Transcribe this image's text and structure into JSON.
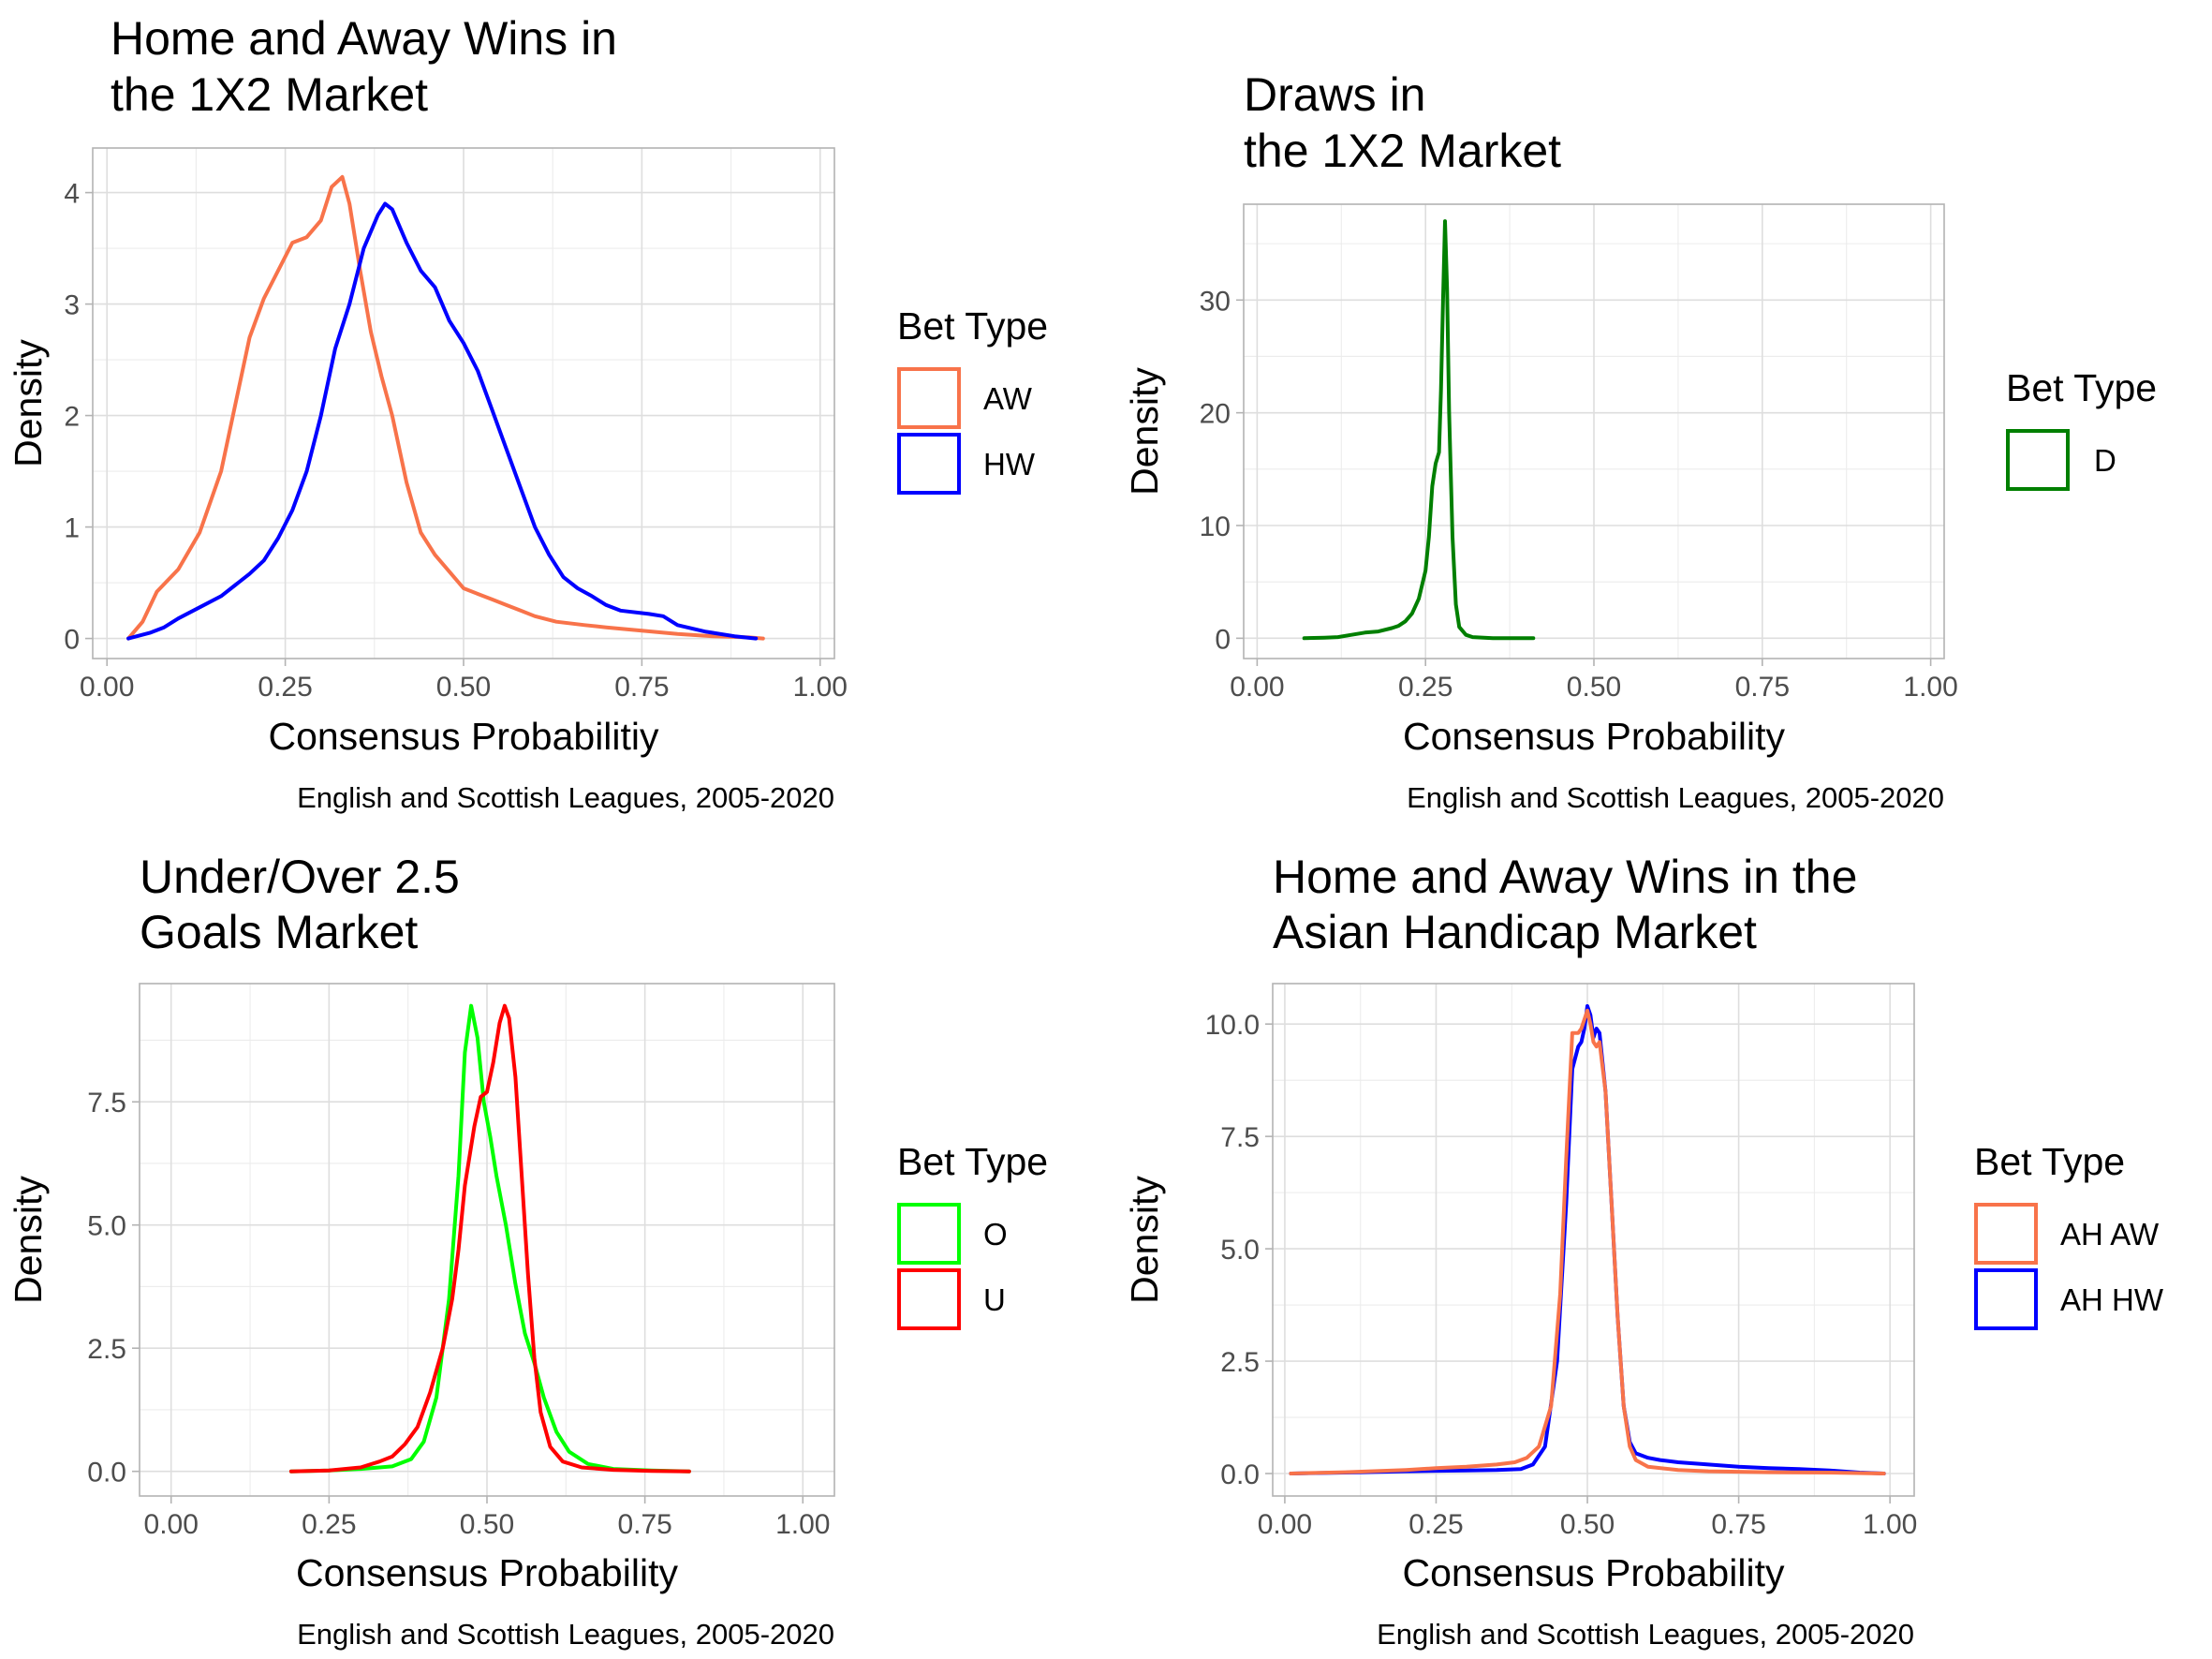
{
  "chart_data": [
    {
      "type": "line",
      "title": [
        "Home and Away Wins in",
        "the 1X2 Market"
      ],
      "xlabel": "Consensus Probabilitiy",
      "ylabel": "Density",
      "caption": "English and Scottish Leagues, 2005-2020",
      "xlim": [
        -0.02,
        1.02
      ],
      "ylim": [
        -0.18,
        4.4
      ],
      "xticks": [
        0,
        0.25,
        0.5,
        0.75,
        1
      ],
      "xtick_labels": [
        "0.00",
        "0.25",
        "0.50",
        "0.75",
        "1.00"
      ],
      "yticks": [
        0,
        1,
        2,
        3,
        4
      ],
      "ytick_labels": [
        "0",
        "1",
        "2",
        "3",
        "4"
      ],
      "grid": true,
      "legend_title": "Bet Type",
      "legend_position": "right",
      "series": [
        {
          "name": "AW",
          "color": "#F8734A",
          "points": [
            [
              0.03,
              0.0
            ],
            [
              0.05,
              0.15
            ],
            [
              0.07,
              0.42
            ],
            [
              0.1,
              0.62
            ],
            [
              0.13,
              0.95
            ],
            [
              0.16,
              1.5
            ],
            [
              0.18,
              2.1
            ],
            [
              0.2,
              2.7
            ],
            [
              0.22,
              3.05
            ],
            [
              0.24,
              3.3
            ],
            [
              0.26,
              3.55
            ],
            [
              0.28,
              3.6
            ],
            [
              0.3,
              3.75
            ],
            [
              0.315,
              4.05
            ],
            [
              0.33,
              4.14
            ],
            [
              0.34,
              3.9
            ],
            [
              0.355,
              3.3
            ],
            [
              0.37,
              2.75
            ],
            [
              0.385,
              2.35
            ],
            [
              0.4,
              2.0
            ],
            [
              0.42,
              1.4
            ],
            [
              0.44,
              0.95
            ],
            [
              0.46,
              0.75
            ],
            [
              0.48,
              0.6
            ],
            [
              0.5,
              0.45
            ],
            [
              0.52,
              0.4
            ],
            [
              0.54,
              0.35
            ],
            [
              0.56,
              0.3
            ],
            [
              0.58,
              0.25
            ],
            [
              0.6,
              0.2
            ],
            [
              0.63,
              0.15
            ],
            [
              0.67,
              0.12
            ],
            [
              0.7,
              0.1
            ],
            [
              0.75,
              0.07
            ],
            [
              0.8,
              0.04
            ],
            [
              0.85,
              0.02
            ],
            [
              0.9,
              0.01
            ],
            [
              0.92,
              0.0
            ]
          ]
        },
        {
          "name": "HW",
          "color": "#0000FF",
          "points": [
            [
              0.03,
              0.0
            ],
            [
              0.06,
              0.05
            ],
            [
              0.08,
              0.1
            ],
            [
              0.1,
              0.18
            ],
            [
              0.13,
              0.28
            ],
            [
              0.16,
              0.38
            ],
            [
              0.18,
              0.48
            ],
            [
              0.2,
              0.58
            ],
            [
              0.22,
              0.7
            ],
            [
              0.24,
              0.9
            ],
            [
              0.26,
              1.15
            ],
            [
              0.28,
              1.5
            ],
            [
              0.3,
              2.0
            ],
            [
              0.32,
              2.6
            ],
            [
              0.34,
              3.0
            ],
            [
              0.36,
              3.5
            ],
            [
              0.38,
              3.8
            ],
            [
              0.39,
              3.9
            ],
            [
              0.4,
              3.85
            ],
            [
              0.42,
              3.55
            ],
            [
              0.44,
              3.3
            ],
            [
              0.46,
              3.15
            ],
            [
              0.48,
              2.85
            ],
            [
              0.5,
              2.65
            ],
            [
              0.52,
              2.4
            ],
            [
              0.54,
              2.05
            ],
            [
              0.56,
              1.7
            ],
            [
              0.58,
              1.35
            ],
            [
              0.6,
              1.0
            ],
            [
              0.62,
              0.75
            ],
            [
              0.64,
              0.55
            ],
            [
              0.66,
              0.45
            ],
            [
              0.68,
              0.38
            ],
            [
              0.7,
              0.3
            ],
            [
              0.72,
              0.25
            ],
            [
              0.76,
              0.22
            ],
            [
              0.78,
              0.2
            ],
            [
              0.8,
              0.12
            ],
            [
              0.84,
              0.06
            ],
            [
              0.88,
              0.02
            ],
            [
              0.91,
              0.0
            ]
          ]
        }
      ]
    },
    {
      "type": "line",
      "title": [
        "Draws in",
        "the 1X2 Market"
      ],
      "xlabel": "Consensus Probability",
      "ylabel": "Density",
      "caption": "English and Scottish Leagues, 2005-2020",
      "xlim": [
        -0.02,
        1.02
      ],
      "ylim": [
        -1.8,
        38.5
      ],
      "xticks": [
        0,
        0.25,
        0.5,
        0.75,
        1
      ],
      "xtick_labels": [
        "0.00",
        "0.25",
        "0.50",
        "0.75",
        "1.00"
      ],
      "yticks": [
        0,
        10,
        20,
        30
      ],
      "ytick_labels": [
        "0",
        "10",
        "20",
        "30"
      ],
      "grid": true,
      "legend_title": "Bet Type",
      "legend_position": "right",
      "series": [
        {
          "name": "D",
          "color": "#007F00",
          "points": [
            [
              0.07,
              0.0
            ],
            [
              0.1,
              0.05
            ],
            [
              0.12,
              0.1
            ],
            [
              0.14,
              0.3
            ],
            [
              0.16,
              0.5
            ],
            [
              0.18,
              0.6
            ],
            [
              0.2,
              0.9
            ],
            [
              0.21,
              1.1
            ],
            [
              0.22,
              1.5
            ],
            [
              0.23,
              2.2
            ],
            [
              0.24,
              3.5
            ],
            [
              0.25,
              6.0
            ],
            [
              0.255,
              9.0
            ],
            [
              0.26,
              13.5
            ],
            [
              0.265,
              15.5
            ],
            [
              0.27,
              16.5
            ],
            [
              0.273,
              22.0
            ],
            [
              0.276,
              30.0
            ],
            [
              0.279,
              37.0
            ],
            [
              0.282,
              31.0
            ],
            [
              0.285,
              20.0
            ],
            [
              0.29,
              9.0
            ],
            [
              0.295,
              3.0
            ],
            [
              0.3,
              1.0
            ],
            [
              0.31,
              0.3
            ],
            [
              0.32,
              0.1
            ],
            [
              0.35,
              0.0
            ],
            [
              0.41,
              0.0
            ]
          ]
        }
      ]
    },
    {
      "type": "line",
      "title": [
        "Under/Over 2.5",
        "Goals Market"
      ],
      "xlabel": "Consensus Probability",
      "ylabel": "Density",
      "caption": "English and Scottish Leagues, 2005-2020",
      "xlim": [
        -0.05,
        1.05
      ],
      "ylim": [
        -0.5,
        9.9
      ],
      "xticks": [
        0,
        0.25,
        0.5,
        0.75,
        1
      ],
      "xtick_labels": [
        "0.00",
        "0.25",
        "0.50",
        "0.75",
        "1.00"
      ],
      "yticks": [
        0,
        2.5,
        5,
        7.5
      ],
      "ytick_labels": [
        "0.0",
        "2.5",
        "5.0",
        "7.5"
      ],
      "grid": true,
      "legend_title": "Bet Type",
      "legend_position": "right",
      "series": [
        {
          "name": "O",
          "color": "#00FF00",
          "points": [
            [
              0.19,
              0.0
            ],
            [
              0.25,
              0.02
            ],
            [
              0.3,
              0.05
            ],
            [
              0.35,
              0.1
            ],
            [
              0.38,
              0.25
            ],
            [
              0.4,
              0.6
            ],
            [
              0.42,
              1.5
            ],
            [
              0.44,
              3.5
            ],
            [
              0.455,
              6.0
            ],
            [
              0.465,
              8.5
            ],
            [
              0.475,
              9.45
            ],
            [
              0.485,
              8.8
            ],
            [
              0.495,
              7.5
            ],
            [
              0.505,
              6.8
            ],
            [
              0.515,
              6.0
            ],
            [
              0.53,
              5.0
            ],
            [
              0.545,
              3.8
            ],
            [
              0.56,
              2.8
            ],
            [
              0.575,
              2.2
            ],
            [
              0.59,
              1.5
            ],
            [
              0.61,
              0.8
            ],
            [
              0.63,
              0.4
            ],
            [
              0.66,
              0.15
            ],
            [
              0.7,
              0.05
            ],
            [
              0.76,
              0.02
            ],
            [
              0.82,
              0.0
            ]
          ]
        },
        {
          "name": "U",
          "color": "#FF0000",
          "points": [
            [
              0.19,
              0.0
            ],
            [
              0.25,
              0.02
            ],
            [
              0.3,
              0.08
            ],
            [
              0.33,
              0.2
            ],
            [
              0.35,
              0.3
            ],
            [
              0.37,
              0.55
            ],
            [
              0.39,
              0.9
            ],
            [
              0.41,
              1.6
            ],
            [
              0.43,
              2.5
            ],
            [
              0.445,
              3.5
            ],
            [
              0.455,
              4.5
            ],
            [
              0.465,
              5.8
            ],
            [
              0.48,
              7.0
            ],
            [
              0.49,
              7.6
            ],
            [
              0.5,
              7.7
            ],
            [
              0.51,
              8.3
            ],
            [
              0.52,
              9.1
            ],
            [
              0.528,
              9.45
            ],
            [
              0.535,
              9.2
            ],
            [
              0.545,
              8.0
            ],
            [
              0.555,
              6.0
            ],
            [
              0.565,
              4.0
            ],
            [
              0.575,
              2.3
            ],
            [
              0.585,
              1.2
            ],
            [
              0.6,
              0.5
            ],
            [
              0.62,
              0.2
            ],
            [
              0.65,
              0.08
            ],
            [
              0.7,
              0.03
            ],
            [
              0.76,
              0.01
            ],
            [
              0.82,
              0.0
            ]
          ]
        }
      ]
    },
    {
      "type": "line",
      "title": [
        "Home and Away Wins in the",
        "Asian Handicap Market"
      ],
      "xlabel": "Consensus Probability",
      "ylabel": "Density",
      "caption": "English and Scottish Leagues, 2005-2020",
      "xlim": [
        -0.02,
        1.04
      ],
      "ylim": [
        -0.5,
        10.9
      ],
      "xticks": [
        0,
        0.25,
        0.5,
        0.75,
        1
      ],
      "xtick_labels": [
        "0.00",
        "0.25",
        "0.50",
        "0.75",
        "1.00"
      ],
      "yticks": [
        0,
        2.5,
        5,
        7.5,
        10
      ],
      "ytick_labels": [
        "0.0",
        "2.5",
        "5.0",
        "7.5",
        "10.0"
      ],
      "grid": true,
      "legend_title": "Bet Type",
      "legend_position": "right",
      "series": [
        {
          "name": "AH HW",
          "color": "#0000FF",
          "points": [
            [
              0.01,
              0.0
            ],
            [
              0.1,
              0.02
            ],
            [
              0.2,
              0.05
            ],
            [
              0.3,
              0.07
            ],
            [
              0.35,
              0.08
            ],
            [
              0.39,
              0.1
            ],
            [
              0.41,
              0.2
            ],
            [
              0.43,
              0.6
            ],
            [
              0.45,
              2.5
            ],
            [
              0.465,
              6.0
            ],
            [
              0.475,
              9.0
            ],
            [
              0.485,
              9.5
            ],
            [
              0.49,
              9.6
            ],
            [
              0.495,
              9.9
            ],
            [
              0.5,
              10.4
            ],
            [
              0.505,
              10.2
            ],
            [
              0.51,
              9.7
            ],
            [
              0.515,
              9.9
            ],
            [
              0.52,
              9.8
            ],
            [
              0.53,
              8.5
            ],
            [
              0.54,
              6.0
            ],
            [
              0.55,
              3.5
            ],
            [
              0.56,
              1.5
            ],
            [
              0.57,
              0.7
            ],
            [
              0.58,
              0.45
            ],
            [
              0.6,
              0.35
            ],
            [
              0.62,
              0.3
            ],
            [
              0.65,
              0.25
            ],
            [
              0.7,
              0.2
            ],
            [
              0.75,
              0.15
            ],
            [
              0.8,
              0.12
            ],
            [
              0.85,
              0.1
            ],
            [
              0.9,
              0.07
            ],
            [
              0.95,
              0.02
            ],
            [
              0.99,
              0.0
            ]
          ]
        },
        {
          "name": "AH AW",
          "color": "#F8734A",
          "points": [
            [
              0.01,
              0.0
            ],
            [
              0.1,
              0.03
            ],
            [
              0.2,
              0.08
            ],
            [
              0.25,
              0.12
            ],
            [
              0.3,
              0.15
            ],
            [
              0.35,
              0.2
            ],
            [
              0.38,
              0.25
            ],
            [
              0.4,
              0.35
            ],
            [
              0.42,
              0.6
            ],
            [
              0.44,
              1.5
            ],
            [
              0.455,
              4.0
            ],
            [
              0.465,
              7.0
            ],
            [
              0.475,
              9.8
            ],
            [
              0.485,
              9.8
            ],
            [
              0.49,
              9.9
            ],
            [
              0.495,
              10.1
            ],
            [
              0.5,
              10.3
            ],
            [
              0.505,
              10.0
            ],
            [
              0.51,
              9.6
            ],
            [
              0.515,
              9.5
            ],
            [
              0.52,
              9.6
            ],
            [
              0.53,
              8.5
            ],
            [
              0.54,
              6.0
            ],
            [
              0.55,
              3.5
            ],
            [
              0.56,
              1.5
            ],
            [
              0.57,
              0.6
            ],
            [
              0.58,
              0.3
            ],
            [
              0.6,
              0.15
            ],
            [
              0.65,
              0.08
            ],
            [
              0.7,
              0.05
            ],
            [
              0.8,
              0.03
            ],
            [
              0.9,
              0.02
            ],
            [
              0.99,
              0.0
            ]
          ]
        }
      ]
    }
  ]
}
